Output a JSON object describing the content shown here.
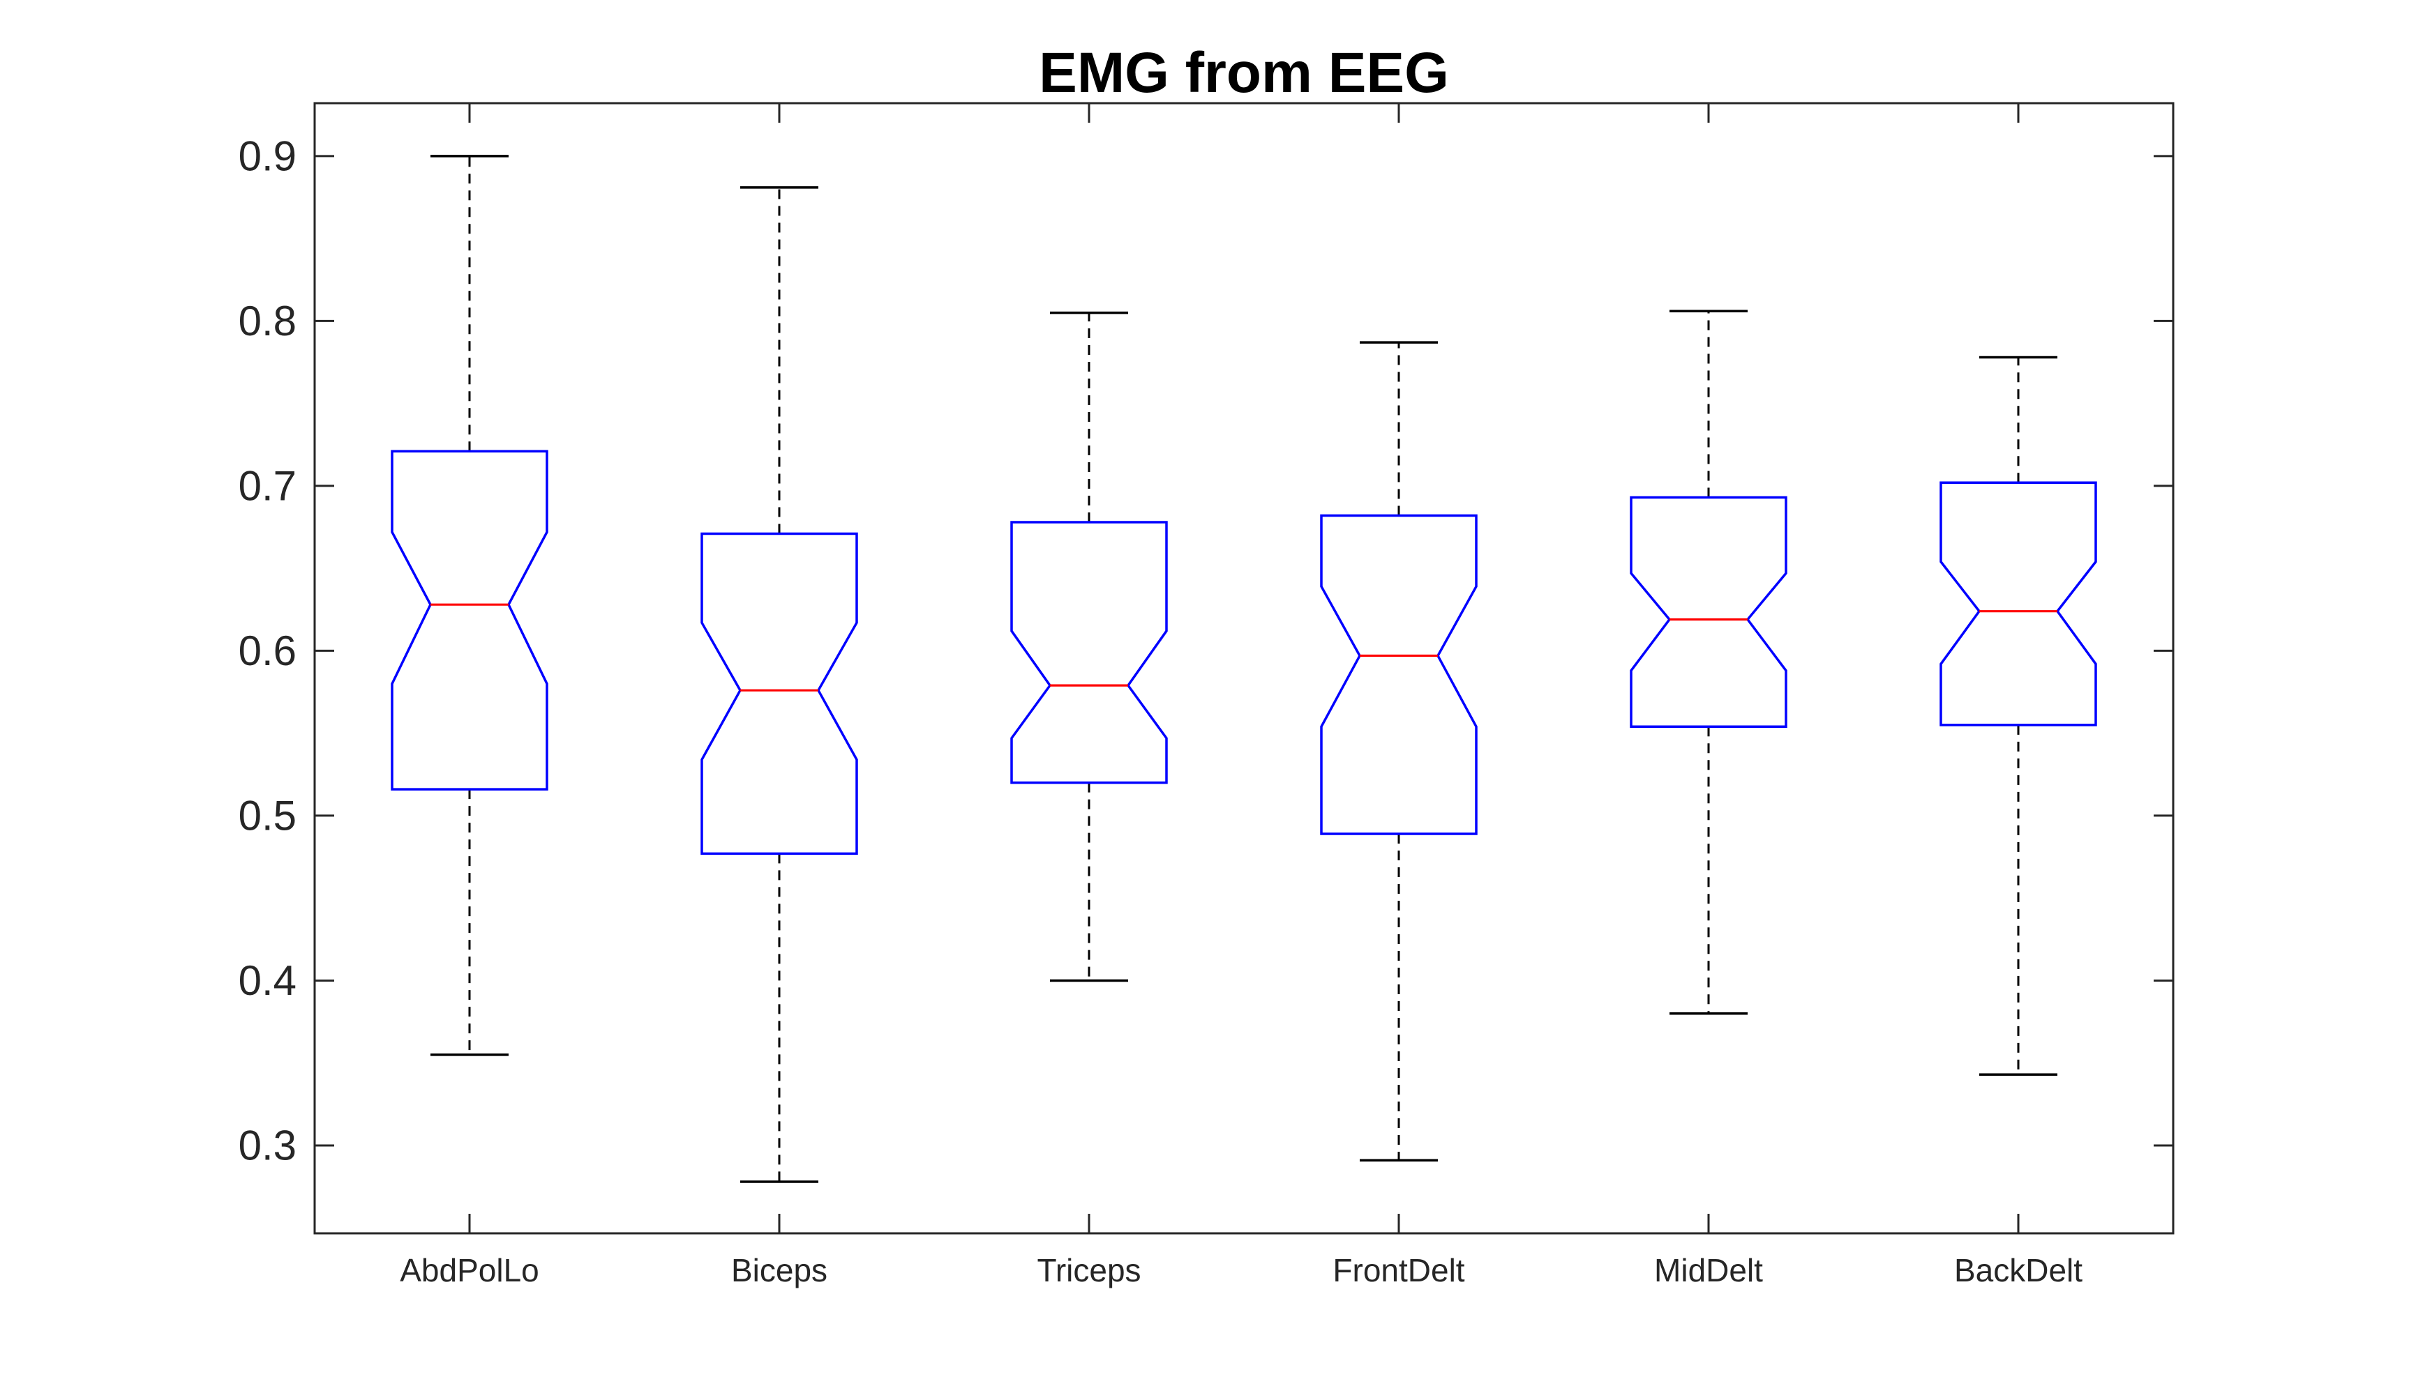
{
  "page": {
    "background": "#ffffff"
  },
  "chart_data": {
    "type": "boxplot",
    "title": "EMG from EEG",
    "notched": true,
    "grid": false,
    "legend": null,
    "xlabel": "",
    "ylabel": "",
    "categories": [
      "AbdPolLo",
      "Biceps",
      "Triceps",
      "FrontDelt",
      "MidDelt",
      "BackDelt"
    ],
    "y_ticks": [
      0.3,
      0.4,
      0.5,
      0.6,
      0.7,
      0.8,
      0.9
    ],
    "y_tick_labels": [
      "0.3",
      "0.4",
      "0.5",
      "0.6",
      "0.7",
      "0.8",
      "0.9"
    ],
    "ylim": [
      0.2467,
      0.9321
    ],
    "xlim": [
      0.5,
      6.5
    ],
    "series": [
      {
        "name": "AbdPolLo",
        "whisker_low": 0.355,
        "q1": 0.516,
        "notch_low": 0.58,
        "median": 0.628,
        "notch_high": 0.672,
        "q3": 0.721,
        "whisker_high": 0.9
      },
      {
        "name": "Biceps",
        "whisker_low": 0.278,
        "q1": 0.477,
        "notch_low": 0.534,
        "median": 0.576,
        "notch_high": 0.617,
        "q3": 0.671,
        "whisker_high": 0.881
      },
      {
        "name": "Triceps",
        "whisker_low": 0.4,
        "q1": 0.52,
        "notch_low": 0.547,
        "median": 0.579,
        "notch_high": 0.612,
        "q3": 0.678,
        "whisker_high": 0.805
      },
      {
        "name": "FrontDelt",
        "whisker_low": 0.291,
        "q1": 0.489,
        "notch_low": 0.554,
        "median": 0.597,
        "notch_high": 0.639,
        "q3": 0.682,
        "whisker_high": 0.787
      },
      {
        "name": "MidDelt",
        "whisker_low": 0.38,
        "q1": 0.554,
        "notch_low": 0.588,
        "median": 0.619,
        "notch_high": 0.647,
        "q3": 0.693,
        "whisker_high": 0.806
      },
      {
        "name": "BackDelt",
        "whisker_low": 0.343,
        "q1": 0.555,
        "notch_low": 0.592,
        "median": 0.624,
        "notch_high": 0.654,
        "q3": 0.702,
        "whisker_high": 0.778
      }
    ],
    "colors": {
      "box": "#0000ff",
      "median": "#ff0000",
      "whisker": "#000000",
      "cap": "#000000",
      "axis": "#262626",
      "tick_label": "#262626",
      "title": "#000000"
    }
  }
}
